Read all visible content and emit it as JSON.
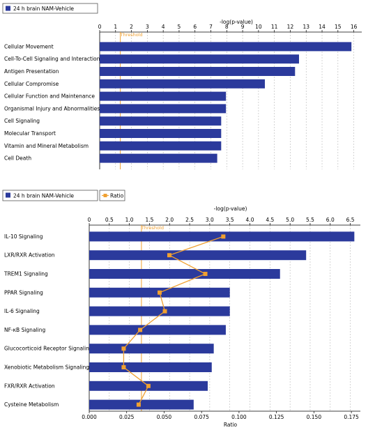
{
  "chart_data": [
    {
      "type": "bar",
      "orientation": "horizontal",
      "legend": [
        {
          "label": "24 h brain NAM-Vehicle",
          "color": "#2b3a9c",
          "marker": "square"
        }
      ],
      "x_axis": {
        "label": "-log(p-value)",
        "position": "top",
        "ticks": [
          "0",
          "1",
          "2",
          "3",
          "4",
          "5",
          "6",
          "7",
          "8",
          "9",
          "10",
          "11",
          "12",
          "13",
          "14",
          "15",
          "16"
        ],
        "range": [
          0,
          16.5
        ]
      },
      "threshold": {
        "label": "Threshold",
        "value": 1.3,
        "color": "#f0a030"
      },
      "categories": [
        "Cellular Movement",
        "Cell-To-Cell Signaling and Interaction",
        "Antigen Presentation",
        "Cellular Compromise",
        "Cellular Function and Maintenance",
        "Organismal Injury and Abnormalities",
        "Cell Signaling",
        "Molecular Transport",
        "Vitamin and Mineral Metabolism",
        "Cell Death"
      ],
      "values": [
        15.85,
        12.55,
        12.3,
        10.4,
        7.95,
        7.95,
        7.65,
        7.65,
        7.65,
        7.4
      ],
      "bar_color": "#2b3a9c",
      "grid": true
    },
    {
      "type": "bar",
      "orientation": "horizontal",
      "legend": [
        {
          "label": "24 h brain NAM-Vehicle",
          "color": "#2b3a9c",
          "marker": "square"
        },
        {
          "label": "Ratio",
          "color": "#f0a030",
          "marker": "line-square"
        }
      ],
      "x_axis": {
        "label": "-log(p-value)",
        "position": "top",
        "ticks": [
          "0",
          "0.5",
          "1.0",
          "1.5",
          "2.0",
          "2.5",
          "3.0",
          "3.5",
          "4.0",
          "4.5",
          "5.0",
          "5.5",
          "6.0",
          "6.5"
        ],
        "range": [
          0,
          6.75
        ]
      },
      "x2_axis": {
        "label": "Ratio",
        "position": "bottom",
        "ticks": [
          "0.000",
          "0.025",
          "0.050",
          "0.075",
          "0.100",
          "0.125",
          "0.150",
          "0.175"
        ],
        "range": [
          0,
          0.181
        ]
      },
      "threshold": {
        "label": "Threshold",
        "value": 1.3,
        "color": "#f0a030"
      },
      "categories": [
        "IL-10 Signaling",
        "LXR/RXR Activation",
        "TREM1 Signaling",
        "PPAR Signaling",
        "IL-6 Signaling",
        "NF-κB Signaling",
        "Glucocorticoid Receptor Signaling",
        "Xenobiotic Metabolism Signaling",
        "FXR/RXR Activation",
        "Cysteine Metabolism"
      ],
      "values": [
        6.6,
        5.4,
        4.75,
        3.5,
        3.5,
        3.4,
        3.1,
        3.05,
        2.95,
        2.6
      ],
      "ratio_values": [
        0.0895,
        0.0535,
        0.0775,
        0.047,
        0.0505,
        0.034,
        0.023,
        0.023,
        0.0395,
        0.033
      ],
      "bar_color": "#2b3a9c",
      "ratio_color": "#f0a030",
      "grid": true
    }
  ]
}
